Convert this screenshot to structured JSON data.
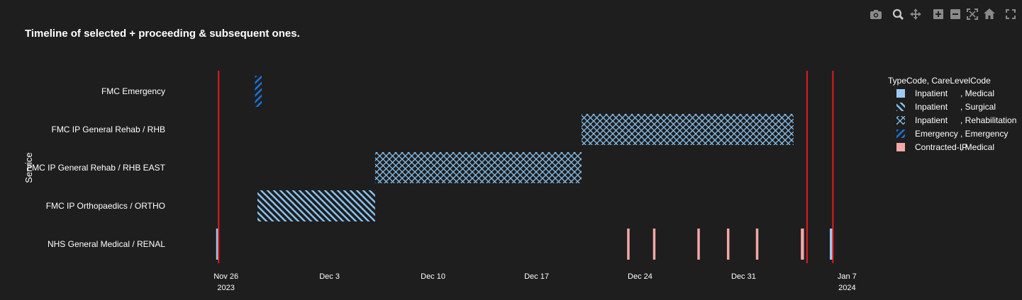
{
  "toolbar": {
    "icons": [
      "camera-icon",
      "zoom-icon",
      "pan-icon",
      "zoom-in-icon",
      "zoom-out-icon",
      "autoscale-icon",
      "home-icon",
      "fullscreen-icon"
    ]
  },
  "chart_data": {
    "type": "timeline",
    "title": "Timeline of selected + proceeding & subsequent ones.",
    "ylabel": "Service",
    "xlabel": "",
    "categories": [
      "FMC Emergency",
      "FMC IP General Rehab / RHB",
      "FMC IP General Rehab / RHB EAST",
      "FMC IP Orthopaedics / ORTHO",
      "NHS General Medical / RENAL"
    ],
    "xlim": [
      "2023-11-24T15:00",
      "2024-01-07T18:00"
    ],
    "x_ticks": [
      {
        "date": "2023-11-26",
        "label": "Nov 26",
        "sub": "2023"
      },
      {
        "date": "2023-12-03",
        "label": "Dec 3",
        "sub": ""
      },
      {
        "date": "2023-12-10",
        "label": "Dec 10",
        "sub": ""
      },
      {
        "date": "2023-12-17",
        "label": "Dec 17",
        "sub": ""
      },
      {
        "date": "2023-12-24",
        "label": "Dec 24",
        "sub": ""
      },
      {
        "date": "2023-12-31",
        "label": "Dec 31",
        "sub": ""
      },
      {
        "date": "2024-01-07",
        "label": "Jan 7",
        "sub": "2024"
      }
    ],
    "vlines": [
      "2023-11-25T12:00",
      "2024-01-04T07:00",
      "2024-01-06T01:00"
    ],
    "vline_color": "#e8191c",
    "legend": {
      "title": "TypeCode, CareLevelCode",
      "position": "right",
      "entries": [
        {
          "key": "inp-med",
          "type": "Inpatient",
          "care": ", Medical",
          "color": "#9ecbf5",
          "pattern": "solid"
        },
        {
          "key": "inp-surg",
          "type": "Inpatient",
          "care": ", Surgical",
          "color": "#8ac3f0",
          "pattern": "diag-back"
        },
        {
          "key": "inp-rehab",
          "type": "Inpatient",
          "care": ", Rehabilitation",
          "color": "#8ac3f0",
          "pattern": "cross"
        },
        {
          "key": "emerg",
          "type": "Emergency",
          "care": ", Emergency",
          "color": "#1f6fd1",
          "pattern": "diag-fwd"
        },
        {
          "key": "cip-med",
          "type": "Contracted-IP",
          "care": ", Medical",
          "color": "#f4a8a8",
          "pattern": "solid"
        }
      ]
    },
    "segments": [
      {
        "category": "FMC Emergency",
        "series": "emerg",
        "start": "2023-11-27T23:00",
        "end": "2023-11-28T10:00"
      },
      {
        "category": "FMC IP General Rehab / RHB",
        "series": "inp-rehab",
        "start": "2023-12-20T01:00",
        "end": "2024-01-03T09:00"
      },
      {
        "category": "FMC IP General Rehab / RHB EAST",
        "series": "inp-rehab",
        "start": "2023-12-06T02:00",
        "end": "2023-12-20T01:00"
      },
      {
        "category": "FMC IP Orthopaedics / ORTHO",
        "series": "inp-surg",
        "start": "2023-11-28T03:00",
        "end": "2023-12-06T02:00"
      },
      {
        "category": "NHS General Medical / RENAL",
        "series": "inp-med",
        "start": "2023-11-25T08:00",
        "end": "2023-11-25T12:00"
      },
      {
        "category": "NHS General Medical / RENAL",
        "series": "cip-med",
        "start": "2023-12-23T03:00",
        "end": "2023-12-23T07:00"
      },
      {
        "category": "NHS General Medical / RENAL",
        "series": "cip-med",
        "start": "2023-12-24T21:00",
        "end": "2023-12-25T01:00"
      },
      {
        "category": "NHS General Medical / RENAL",
        "series": "cip-med",
        "start": "2023-12-27T21:00",
        "end": "2023-12-28T01:00"
      },
      {
        "category": "NHS General Medical / RENAL",
        "series": "cip-med",
        "start": "2023-12-29T21:00",
        "end": "2023-12-30T01:00"
      },
      {
        "category": "NHS General Medical / RENAL",
        "series": "cip-med",
        "start": "2023-12-31T20:00",
        "end": "2024-01-01T00:00"
      },
      {
        "category": "NHS General Medical / RENAL",
        "series": "cip-med",
        "start": "2024-01-03T21:00",
        "end": "2024-01-04T02:00"
      },
      {
        "category": "NHS General Medical / RENAL",
        "series": "inp-med",
        "start": "2024-01-05T20:00",
        "end": "2024-01-06T01:00"
      }
    ]
  }
}
